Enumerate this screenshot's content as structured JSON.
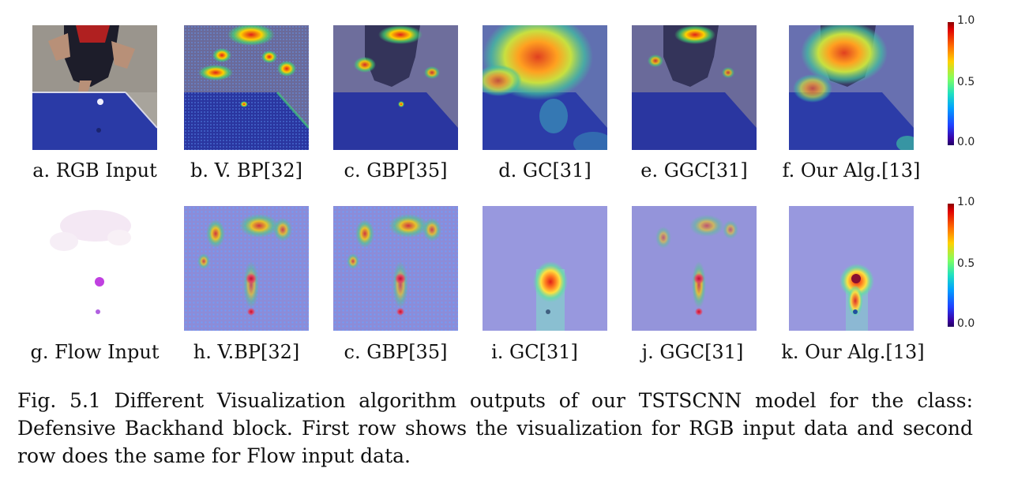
{
  "captions": {
    "row1": [
      "a. RGB Input",
      "b. V. BP[32]",
      "c. GBP[35]",
      "d. GC[31]",
      "e. GGC[31]",
      "f. Our Alg.[13]"
    ],
    "row2": [
      "g. Flow Input",
      "h. V.BP[32]",
      "c. GBP[35]",
      "i. GC[31]",
      "j. GGC[31]",
      "k. Our Alg.[13]"
    ]
  },
  "colorbar": {
    "top_label": "1.0",
    "mid_label": "0.5",
    "bottom_label": "0.0"
  },
  "figure_caption": "Fig. 5.1 Different Visualization algorithm outputs of our TSTSCNN model for the class: Defensive Backhand block. First row shows the visualization for RGB input data and second row does the same for Flow input data.",
  "colors": {
    "table_blue": "#2a3a9e",
    "heat_red": "#e0201a",
    "heat_yellow": "#ffd000",
    "heat_green": "#40d870",
    "overlay_blue": "#8a8ad8"
  }
}
